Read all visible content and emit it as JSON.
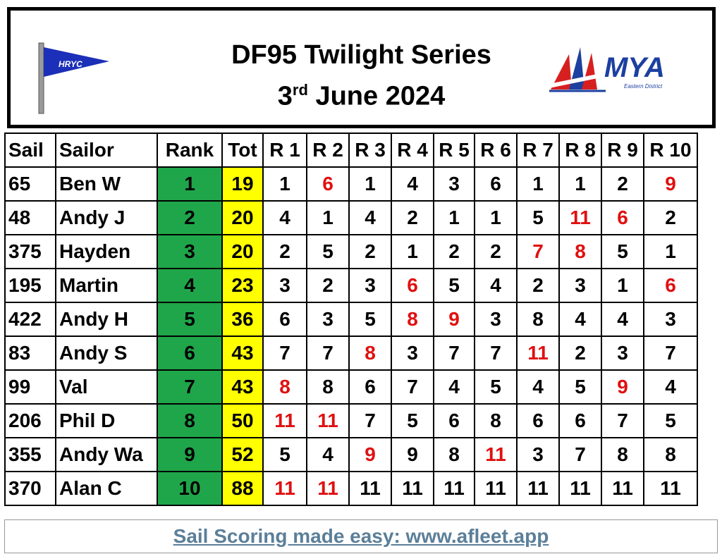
{
  "header": {
    "title": "DF95 Twilight Series",
    "date": {
      "day": "3",
      "suffix": "rd",
      "rest": "June 2024"
    },
    "left_logo": {
      "text": "HRYC"
    },
    "right_logo": {
      "text": "MYA",
      "subtext": "Eastern District"
    }
  },
  "table": {
    "columns": [
      "Sail",
      "Sailor",
      "Rank",
      "Tot",
      "R 1",
      "R 2",
      "R 3",
      "R 4",
      "R 5",
      "R 6",
      "R 7",
      "R 8",
      "R 9",
      "R 10"
    ],
    "rank_color": "#1fa64a",
    "tot_color": "#ffff00",
    "rows": [
      {
        "sail": 65,
        "sailor": "Ben W",
        "rank": 1,
        "tot": 19,
        "races": [
          1,
          {
            "value": 6,
            "color": "#e01010"
          },
          1,
          4,
          3,
          6,
          1,
          1,
          2,
          {
            "value": 9,
            "color": "#e01010"
          }
        ]
      },
      {
        "sail": 48,
        "sailor": "Andy J",
        "rank": 2,
        "tot": 20,
        "races": [
          4,
          1,
          4,
          2,
          1,
          1,
          5,
          {
            "value": 11,
            "color": "#e01010"
          },
          {
            "value": 6,
            "color": "#e01010"
          },
          2
        ]
      },
      {
        "sail": 375,
        "sailor": "Hayden",
        "rank": 3,
        "tot": 20,
        "races": [
          2,
          5,
          2,
          1,
          2,
          2,
          {
            "value": 7,
            "color": "#e01010"
          },
          {
            "value": 8,
            "color": "#e01010"
          },
          5,
          1
        ]
      },
      {
        "sail": 195,
        "sailor": "Martin",
        "rank": 4,
        "tot": 23,
        "races": [
          3,
          2,
          3,
          {
            "value": 6,
            "color": "#e01010"
          },
          5,
          4,
          2,
          3,
          1,
          {
            "value": 6,
            "color": "#e01010"
          }
        ]
      },
      {
        "sail": 422,
        "sailor": "Andy H",
        "rank": 5,
        "tot": 36,
        "races": [
          6,
          3,
          5,
          {
            "value": 8,
            "color": "#e01010"
          },
          {
            "value": 9,
            "color": "#e01010"
          },
          3,
          8,
          4,
          4,
          3
        ]
      },
      {
        "sail": 83,
        "sailor": "Andy S",
        "rank": 6,
        "tot": 43,
        "races": [
          7,
          7,
          {
            "value": 8,
            "color": "#e01010"
          },
          3,
          7,
          7,
          {
            "value": 11,
            "color": "#e01010"
          },
          2,
          3,
          7
        ]
      },
      {
        "sail": 99,
        "sailor": "Val",
        "rank": 7,
        "tot": 43,
        "races": [
          {
            "value": 8,
            "color": "#e01010"
          },
          8,
          6,
          7,
          4,
          5,
          4,
          5,
          {
            "value": 9,
            "color": "#e01010"
          },
          4
        ]
      },
      {
        "sail": 206,
        "sailor": "Phil D",
        "rank": 8,
        "tot": 50,
        "races": [
          {
            "value": 11,
            "color": "#e01010"
          },
          {
            "value": 11,
            "color": "#e01010"
          },
          7,
          5,
          6,
          8,
          6,
          6,
          7,
          5
        ]
      },
      {
        "sail": 355,
        "sailor": "Andy Wa",
        "rank": 9,
        "tot": 52,
        "races": [
          5,
          4,
          {
            "value": 9,
            "color": "#e01010"
          },
          9,
          8,
          {
            "value": 11,
            "color": "#e01010"
          },
          3,
          7,
          8,
          8
        ]
      },
      {
        "sail": 370,
        "sailor": "Alan C",
        "rank": 10,
        "tot": 88,
        "races": [
          {
            "value": 11,
            "color": "#e01010"
          },
          {
            "value": 11,
            "color": "#e01010"
          },
          11,
          11,
          11,
          11,
          11,
          11,
          11,
          11
        ]
      }
    ]
  },
  "footer": {
    "link": "Sail Scoring made easy: www.afleet.app"
  }
}
